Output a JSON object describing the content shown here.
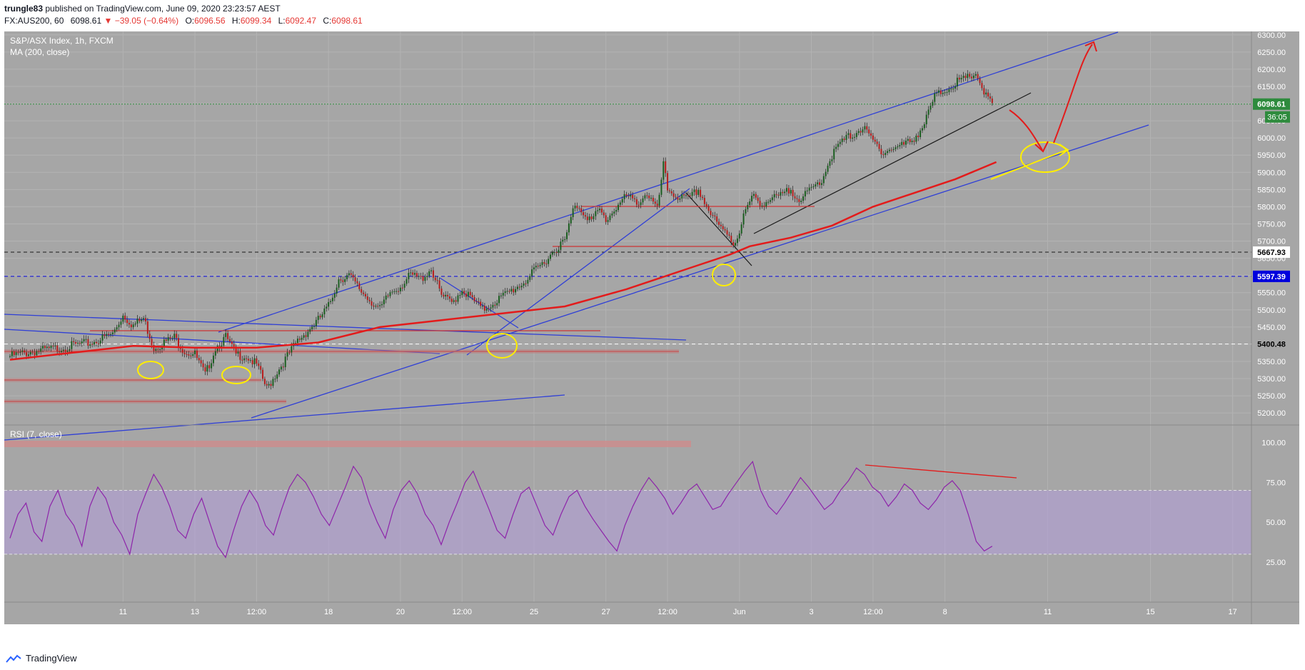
{
  "header": {
    "publisher": "trungle83",
    "published_text": "published on TradingView.com, June 09, 2020 23:23:57 AEST",
    "symbol": "FX:AUS200, 60",
    "last": "6098.61",
    "change_arrow": "▼",
    "change": "−39.05 (−0.64%)",
    "open_label": "O:",
    "open": "6096.56",
    "high_label": "H:",
    "high": "6099.34",
    "low_label": "L:",
    "low": "6092.47",
    "close_label": "C:",
    "close": "6098.61"
  },
  "chart": {
    "legend_title": "S&P/ASX Index, 1h, FXCM",
    "legend_ma": "MA (200, close)",
    "rsi_label": "RSI (7, close)"
  },
  "footer": {
    "brand": "TradingView"
  },
  "colors": {
    "background": "#a6a6a6",
    "candle_up": "#1b5e20",
    "candle_down": "#b71c1c",
    "ma_line": "#e31b1b",
    "trend_line": "#2f3fd6",
    "support_line": "#cc3333",
    "highlight": "#ffee00",
    "rsi_line": "#8e24aa",
    "rsi_band": "#b39ddb",
    "price_tag_green": "#2e8b3d",
    "price_tag_black": "#000000",
    "price_tag_blue": "#0000dd"
  },
  "chart_data": {
    "type": "line",
    "title": "S&P/ASX Index, 1h, FXCM",
    "xlabel": "",
    "ylabel": "",
    "ylim": [
      5165,
      6310
    ],
    "y_ticks": [
      5200,
      5250,
      5300,
      5350,
      5400,
      5450,
      5500,
      5550,
      5600,
      5650,
      5700,
      5750,
      5800,
      5850,
      5900,
      5950,
      6000,
      6050,
      6100,
      6150,
      6200,
      6250,
      6300
    ],
    "x_ticks": [
      "11",
      "13",
      "12:00",
      "18",
      "20",
      "12:00",
      "25",
      "27",
      "12:00",
      "Jun",
      "3",
      "12:00",
      "8",
      "11",
      "15",
      "17"
    ],
    "x_tick_index": [
      55,
      90,
      120,
      155,
      190,
      220,
      255,
      290,
      320,
      355,
      390,
      420,
      455,
      505,
      555,
      595
    ],
    "series": [
      {
        "name": "Price (close)",
        "x": [
          0,
          10,
          20,
          30,
          40,
          50,
          55,
          60,
          65,
          70,
          80,
          85,
          90,
          95,
          100,
          105,
          110,
          115,
          120,
          125,
          130,
          140,
          150,
          155,
          160,
          165,
          170,
          175,
          180,
          185,
          190,
          195,
          200,
          205,
          210,
          215,
          220,
          230,
          240,
          250,
          255,
          260,
          265,
          270,
          275,
          280,
          283,
          287,
          290,
          295,
          300,
          305,
          310,
          315,
          318,
          320,
          325,
          330,
          335,
          340,
          345,
          350,
          352,
          355,
          358,
          362,
          366,
          370,
          375,
          380,
          385,
          390,
          395,
          400,
          405,
          410,
          415,
          420,
          425,
          430,
          435,
          440,
          445,
          450,
          455,
          460,
          465,
          470,
          475,
          478
        ],
        "values": [
          5365,
          5378,
          5385,
          5395,
          5405,
          5430,
          5485,
          5455,
          5475,
          5390,
          5420,
          5380,
          5370,
          5310,
          5390,
          5420,
          5370,
          5365,
          5340,
          5270,
          5320,
          5410,
          5470,
          5510,
          5590,
          5600,
          5560,
          5530,
          5500,
          5550,
          5570,
          5600,
          5590,
          5620,
          5540,
          5520,
          5560,
          5500,
          5540,
          5580,
          5610,
          5640,
          5675,
          5700,
          5810,
          5780,
          5760,
          5790,
          5760,
          5800,
          5830,
          5810,
          5840,
          5790,
          5920,
          5850,
          5830,
          5820,
          5850,
          5790,
          5740,
          5720,
          5690,
          5730,
          5790,
          5830,
          5810,
          5820,
          5830,
          5850,
          5820,
          5850,
          5880,
          5950,
          5990,
          6010,
          6030,
          5990,
          5960,
          5970,
          5980,
          6000,
          6040,
          6120,
          6140,
          6160,
          6170,
          6190,
          6120,
          6098
        ]
      },
      {
        "name": "MA (200, close)",
        "x": [
          0,
          30,
          60,
          90,
          120,
          150,
          180,
          210,
          240,
          270,
          300,
          330,
          350,
          360,
          380,
          400,
          420,
          440,
          460,
          480
        ],
        "values": [
          5355,
          5375,
          5395,
          5390,
          5390,
          5405,
          5450,
          5470,
          5490,
          5510,
          5560,
          5620,
          5660,
          5685,
          5710,
          5745,
          5800,
          5840,
          5880,
          5930
        ]
      }
    ],
    "horizontal_levels": [
      {
        "label": "6098.61",
        "value": 6098.61
      },
      {
        "label": "5667.93",
        "value": 5667.93
      },
      {
        "label": "5597.39",
        "value": 5597.39
      },
      {
        "label": "5400.48",
        "value": 5400.48
      }
    ],
    "countdown": "36:05",
    "rsi": {
      "ylim": [
        0,
        110
      ],
      "ticks": [
        25,
        50,
        75,
        100
      ],
      "tick_labels": [
        "25.00",
        "50.00",
        "75.00",
        "100.00"
      ],
      "band": [
        30,
        70
      ],
      "values": [
        40,
        55,
        62,
        44,
        38,
        60,
        70,
        55,
        48,
        35,
        60,
        72,
        65,
        50,
        42,
        30,
        55,
        68,
        80,
        72,
        60,
        45,
        40,
        55,
        65,
        50,
        35,
        28,
        45,
        60,
        70,
        62,
        48,
        42,
        58,
        72,
        80,
        75,
        66,
        55,
        48,
        60,
        72,
        85,
        78,
        62,
        50,
        40,
        58,
        70,
        76,
        68,
        55,
        48,
        36,
        50,
        62,
        75,
        82,
        70,
        58,
        45,
        40,
        55,
        68,
        72,
        60,
        48,
        42,
        55,
        66,
        70,
        60,
        52,
        45,
        38,
        32,
        48,
        60,
        70,
        78,
        72,
        65,
        55,
        62,
        70,
        74,
        66,
        58,
        60,
        68,
        75,
        82,
        88,
        70,
        60,
        55,
        62,
        70,
        78,
        72,
        65,
        58,
        62,
        70,
        76,
        84,
        80,
        72,
        68,
        60,
        66,
        74,
        70,
        62,
        58,
        64,
        72,
        76,
        70,
        55,
        38,
        32,
        35
      ]
    }
  }
}
